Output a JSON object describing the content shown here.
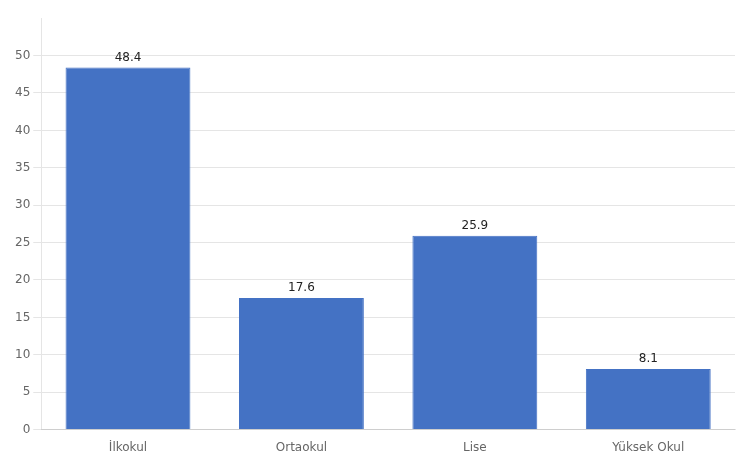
{
  "chart_data": {
    "type": "bar",
    "categories": [
      "İlkokul",
      "Ortaokul",
      "Lise",
      "Yüksek Okul"
    ],
    "values": [
      48.4,
      17.6,
      25.9,
      8.1
    ],
    "color": "#4472C4",
    "ylim": [
      0,
      55
    ],
    "yticks": [
      0,
      5,
      10,
      15,
      20,
      25,
      30,
      35,
      40,
      45,
      50
    ],
    "grid": true,
    "data_labels": true
  }
}
